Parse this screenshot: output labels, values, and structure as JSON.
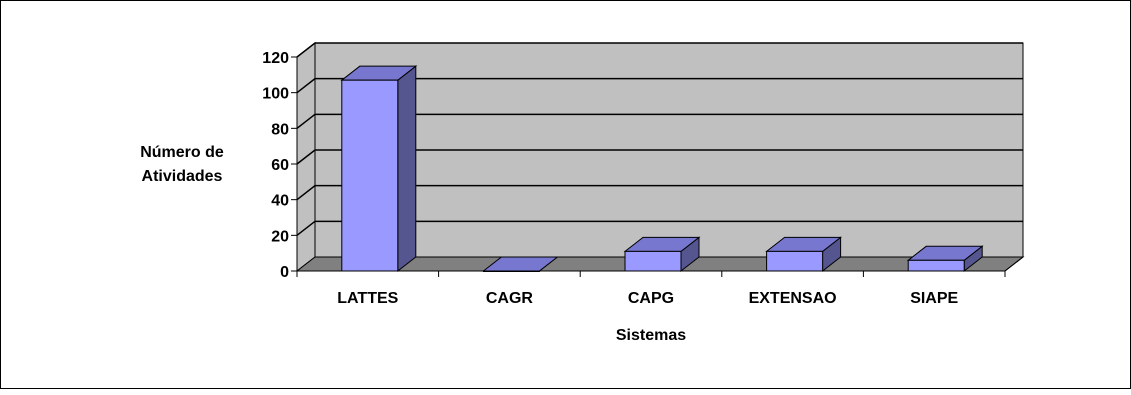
{
  "chart_data": {
    "type": "bar",
    "style": "3d-column",
    "categories": [
      "LATTES",
      "CAGR",
      "CAPG",
      "EXTENSAO",
      "SIAPE"
    ],
    "values": [
      107,
      0,
      11,
      11,
      6
    ],
    "xlabel": "Sistemas",
    "ylabel_lines": [
      "Número de",
      "Atividades"
    ],
    "ylim": [
      0,
      120
    ],
    "yticks": [
      0,
      20,
      40,
      60,
      80,
      100,
      120
    ],
    "grid": true,
    "legend": "none",
    "colors": {
      "bar_front": "#9999ff",
      "bar_side": "#55558f",
      "bar_top": "#7777d0",
      "wall": "#c0c0c0",
      "floor": "#808080",
      "gridline": "#000000"
    }
  }
}
